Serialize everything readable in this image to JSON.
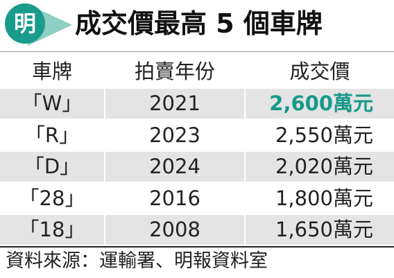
{
  "header": {
    "logo_text": "明",
    "title": "成交價最高 5 個車牌"
  },
  "table": {
    "headers": [
      "車牌",
      "拍賣年份",
      "成交價"
    ],
    "rows": [
      [
        "「W」",
        "2021",
        "2,600萬元"
      ],
      [
        "「R」",
        "2023",
        "2,550萬元"
      ],
      [
        "「D」",
        "2024",
        "2,020萬元"
      ],
      [
        "「28」",
        "2016",
        "1,800萬元"
      ],
      [
        "「18」",
        "2008",
        "1,650萬元"
      ]
    ]
  },
  "footer": {
    "source": "資料來源：運輸署、明報資料室"
  }
}
